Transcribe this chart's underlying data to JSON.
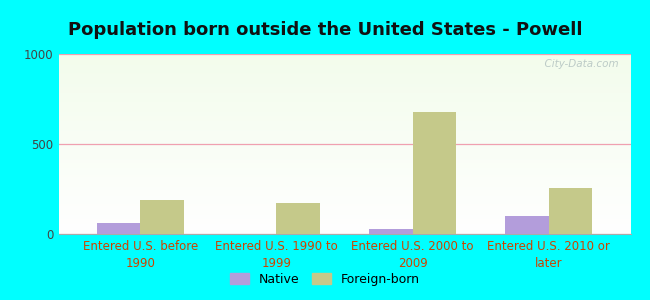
{
  "title": "Population born outside the United States - Powell",
  "categories": [
    "Entered U.S. before\n1990",
    "Entered U.S. 1990 to\n1999",
    "Entered U.S. 2000 to\n2009",
    "Entered U.S. 2010 or\nlater"
  ],
  "native_values": [
    60,
    0,
    30,
    100
  ],
  "foreign_values": [
    190,
    175,
    680,
    255
  ],
  "native_color": "#b39ddb",
  "foreign_color": "#c5c98a",
  "background_color": "#00ffff",
  "ylim": [
    0,
    1000
  ],
  "yticks": [
    0,
    500,
    1000
  ],
  "bar_width": 0.32,
  "title_fontsize": 13,
  "tick_fontsize": 8.5,
  "legend_fontsize": 9,
  "watermark_text": "  City-Data.com",
  "xlabel_color": "#cc4400",
  "gridline_color": "#f0a0b0",
  "title_color": "#111111"
}
